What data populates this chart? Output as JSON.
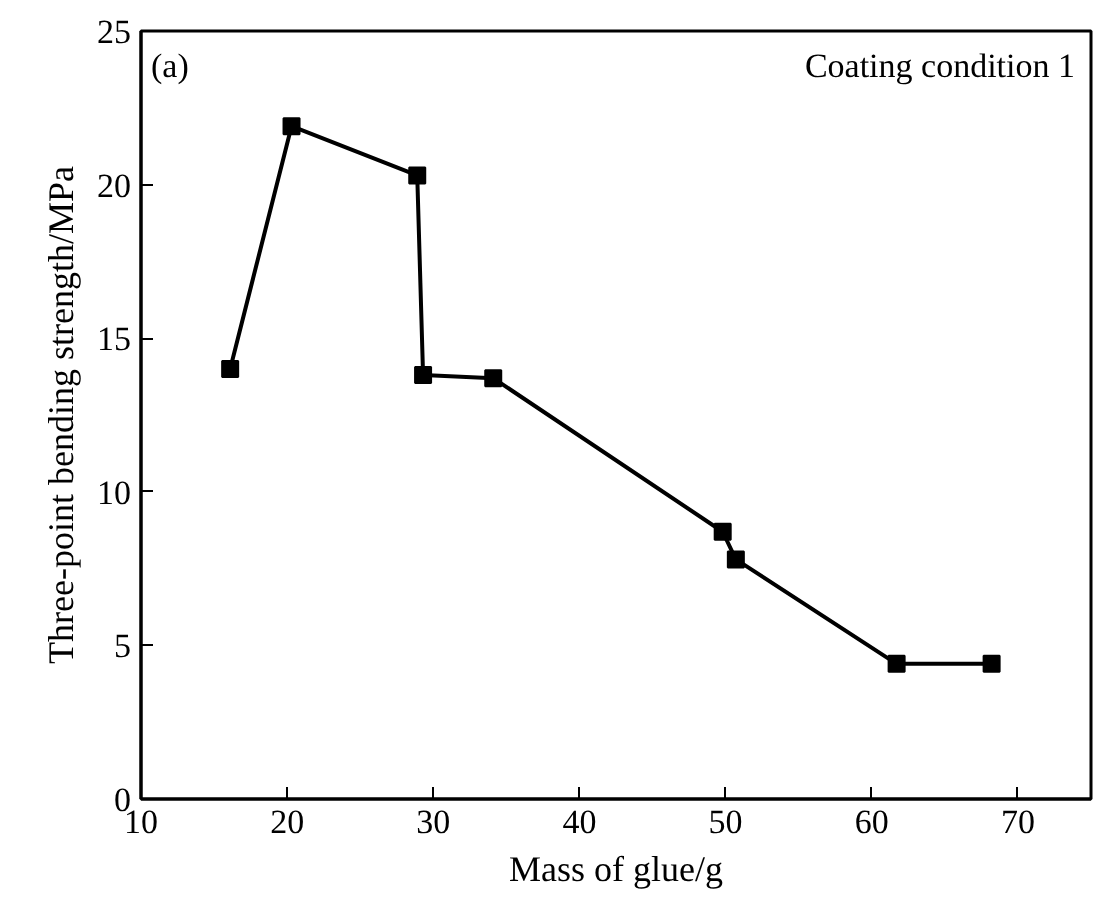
{
  "chart_data": {
    "type": "line",
    "xlabel": "Mass of glue/g",
    "ylabel": "Three-point bending strength/MPa",
    "annotations": [
      "(a)",
      "Coating condition 1"
    ],
    "x": [
      16.1,
      20.3,
      28.9,
      29.3,
      34.1,
      49.8,
      50.7,
      61.7,
      68.2
    ],
    "series": [
      {
        "color": "#000000",
        "values": [
          14.0,
          21.9,
          20.3,
          13.8,
          13.7,
          8.7,
          7.8,
          4.4,
          4.4
        ]
      }
    ],
    "xlim": [
      10,
      75
    ],
    "xticks": [
      10,
      20,
      30,
      40,
      50,
      60,
      70
    ],
    "ylim": [
      0,
      25
    ],
    "yticks": [
      0,
      5,
      10,
      15,
      20,
      25
    ],
    "grid": false,
    "marker": "square",
    "line_style": "solid"
  }
}
